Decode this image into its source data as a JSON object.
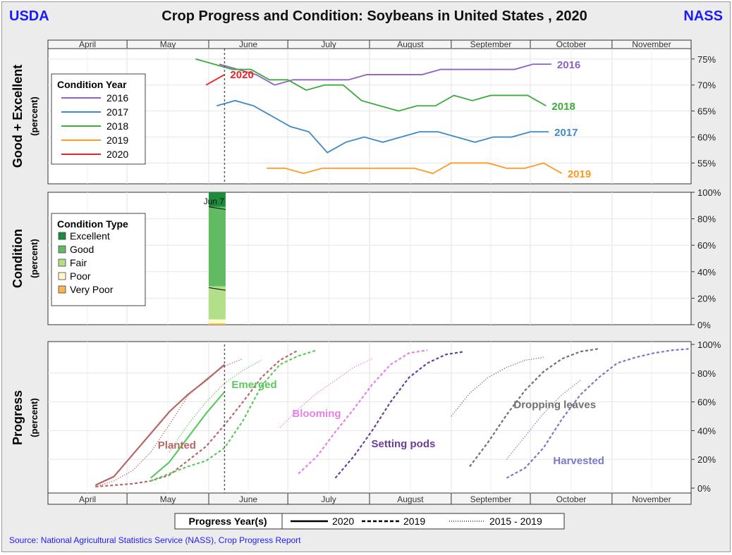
{
  "header": {
    "left": "USDA",
    "right": "NASS",
    "title": "Crop Progress and Condition: Soybeans in United States , 2020"
  },
  "months": [
    "April",
    "May",
    "June",
    "July",
    "August",
    "September",
    "October",
    "November"
  ],
  "panels": {
    "top": {
      "ylabel": "Good + Excellent",
      "ysub": "(percent)",
      "ticks": [
        "75%",
        "70%",
        "65%",
        "60%",
        "55%"
      ]
    },
    "mid": {
      "ylabel": "Condition",
      "ysub": "(percent)",
      "ticks": [
        "100%",
        "80%",
        "60%",
        "40%",
        "20%",
        "0%"
      ]
    },
    "bot": {
      "ylabel": "Progress",
      "ysub": "(percent)",
      "ticks": [
        "100%",
        "80%",
        "60%",
        "40%",
        "20%",
        "0%"
      ]
    }
  },
  "condition_year_legend": {
    "title": "Condition Year",
    "items": [
      {
        "label": "2016",
        "color": "#8e62c2"
      },
      {
        "label": "2017",
        "color": "#3f8ac6"
      },
      {
        "label": "2018",
        "color": "#3caa3c"
      },
      {
        "label": "2019",
        "color": "#ff9922"
      },
      {
        "label": "2020",
        "color": "#ee2222"
      }
    ]
  },
  "condition_type_legend": {
    "title": "Condition Type",
    "items": [
      {
        "label": "Excellent",
        "color": "#1e8a3c"
      },
      {
        "label": "Good",
        "color": "#62bb62"
      },
      {
        "label": "Fair",
        "color": "#b3df8a"
      },
      {
        "label": "Poor",
        "color": "#fffbcc"
      },
      {
        "label": "Very Poor",
        "color": "#f7b74a"
      }
    ]
  },
  "condition_date_label": "Jun 7",
  "progress_legend": {
    "title": "Progress Year(s)",
    "items": [
      "2020",
      "2019",
      "2015 - 2019"
    ]
  },
  "source": "Source: National Agricultural Statistics Service (NASS), Crop Progress Report",
  "chart_data": [
    {
      "type": "line",
      "title": "Crop Progress and Condition: Soybeans in United States , 2020",
      "ylabel": "Good + Excellent (percent)",
      "x_unit": "week ending date (month-day)",
      "ylim": [
        51,
        77
      ],
      "series": [
        {
          "name": "2016",
          "color": "#8e62c2",
          "x": [
            "06-05",
            "06-12",
            "06-19",
            "06-26",
            "07-03",
            "07-10",
            "07-17",
            "07-24",
            "07-31",
            "08-07",
            "08-14",
            "08-21",
            "08-28",
            "09-04",
            "09-11",
            "09-18",
            "09-25",
            "10-02",
            "10-09"
          ],
          "values": [
            74,
            73,
            72,
            70,
            71,
            71,
            71,
            71,
            72,
            72,
            72,
            72,
            73,
            73,
            73,
            73,
            73,
            74,
            74
          ]
        },
        {
          "name": "2017",
          "color": "#3f8ac6",
          "x": [
            "06-04",
            "06-11",
            "06-18",
            "06-25",
            "07-02",
            "07-09",
            "07-16",
            "07-23",
            "07-30",
            "08-06",
            "08-13",
            "08-20",
            "08-27",
            "09-03",
            "09-10",
            "09-17",
            "09-24",
            "10-01",
            "10-08"
          ],
          "values": [
            66,
            67,
            66,
            64,
            62,
            61,
            57,
            59,
            60,
            59,
            60,
            61,
            61,
            60,
            59,
            60,
            60,
            61,
            61
          ]
        },
        {
          "name": "2018",
          "color": "#3caa3c",
          "x": [
            "05-27",
            "06-03",
            "06-10",
            "06-17",
            "06-24",
            "07-01",
            "07-08",
            "07-15",
            "07-22",
            "07-29",
            "08-05",
            "08-12",
            "08-19",
            "08-26",
            "09-02",
            "09-09",
            "09-16",
            "09-23",
            "09-30",
            "10-07"
          ],
          "values": [
            75,
            74,
            73,
            73,
            71,
            71,
            69,
            70,
            70,
            67,
            66,
            65,
            66,
            66,
            68,
            67,
            68,
            68,
            68,
            66
          ]
        },
        {
          "name": "2019",
          "color": "#ff9922",
          "x": [
            "06-23",
            "06-30",
            "07-07",
            "07-14",
            "07-21",
            "07-28",
            "08-04",
            "08-11",
            "08-18",
            "08-25",
            "09-01",
            "09-08",
            "09-15",
            "09-22",
            "09-29",
            "10-06",
            "10-13"
          ],
          "values": [
            54,
            54,
            53,
            54,
            54,
            54,
            54,
            54,
            54,
            53,
            55,
            55,
            55,
            54,
            54,
            55,
            53
          ]
        },
        {
          "name": "2020",
          "color": "#ee2222",
          "x": [
            "05-31",
            "06-07"
          ],
          "values": [
            70,
            72
          ]
        }
      ]
    },
    {
      "type": "area",
      "ylabel": "Condition (percent)",
      "ylim": [
        0,
        100
      ],
      "date": "06-07",
      "categories": [
        "Very Poor",
        "Poor",
        "Fair",
        "Good",
        "Excellent"
      ],
      "values": [
        1,
        3,
        25,
        60,
        11
      ]
    },
    {
      "type": "line",
      "ylabel": "Progress (percent)",
      "ylim": [
        0,
        100
      ],
      "x_unit": "week ending date (month-day)",
      "stage_labels": [
        {
          "text": "Planted",
          "color": "#b86666"
        },
        {
          "text": "Emerged",
          "color": "#5cc95c"
        },
        {
          "text": "Blooming",
          "color": "#e67fe6"
        },
        {
          "text": "Setting pods",
          "color": "#6a3d9a"
        },
        {
          "text": "Dropping leaves",
          "color": "#707070"
        },
        {
          "text": "Harvested",
          "color": "#7b78c9"
        }
      ],
      "series": [
        {
          "name": "2020",
          "color": "#b86666",
          "style": "solid",
          "x": [
            "04-19",
            "04-26",
            "05-03",
            "05-10",
            "05-17",
            "05-24",
            "05-31",
            "06-07"
          ],
          "values": [
            2,
            8,
            23,
            38,
            53,
            65,
            75,
            86
          ]
        },
        {
          "name": "2020",
          "color": "#5cc95c",
          "style": "solid",
          "x": [
            "05-10",
            "05-17",
            "05-24",
            "05-31",
            "06-07"
          ],
          "values": [
            7,
            18,
            35,
            52,
            67
          ]
        },
        {
          "x": [
            "04-19",
            "04-26",
            "05-03",
            "05-10",
            "05-17",
            "05-24",
            "05-31",
            "06-07",
            "06-14",
            "06-21",
            "06-28",
            "07-05"
          ],
          "values": [
            1,
            2,
            3,
            5,
            9,
            19,
            29,
            44,
            60,
            77,
            89,
            96
          ],
          "color": "#b86666",
          "style": "dashed"
        },
        {
          "x": [
            "05-10",
            "05-17",
            "05-24",
            "05-31",
            "06-07",
            "06-14",
            "06-21",
            "06-28",
            "07-05",
            "07-12"
          ],
          "values": [
            5,
            10,
            15,
            19,
            28,
            47,
            71,
            86,
            92,
            96
          ],
          "color": "#5cc95c",
          "style": "dashed"
        },
        {
          "x": [
            "07-05",
            "07-12",
            "07-19",
            "07-26",
            "08-02",
            "08-09",
            "08-16",
            "08-23"
          ],
          "values": [
            10,
            22,
            39,
            55,
            72,
            86,
            94,
            96
          ],
          "color": "#e67fe6",
          "style": "dashed"
        },
        {
          "x": [
            "07-19",
            "07-26",
            "08-02",
            "08-09",
            "08-16",
            "08-23",
            "08-30",
            "09-06"
          ],
          "values": [
            7,
            22,
            40,
            60,
            77,
            87,
            93,
            95
          ],
          "color": "#6a3d9a",
          "style": "dashed"
        },
        {
          "x": [
            "09-08",
            "09-15",
            "09-22",
            "09-29",
            "10-06",
            "10-13",
            "10-20",
            "10-27"
          ],
          "values": [
            15,
            32,
            51,
            68,
            81,
            90,
            95,
            97
          ],
          "color": "#707070",
          "style": "dashed"
        },
        {
          "x": [
            "09-22",
            "09-29",
            "10-06",
            "10-13",
            "10-20",
            "10-27",
            "11-03",
            "11-10",
            "11-17",
            "11-24",
            "12-01"
          ],
          "values": [
            7,
            14,
            28,
            48,
            65,
            77,
            87,
            91,
            94,
            96,
            97
          ],
          "color": "#7b78c9",
          "style": "dashed"
        },
        {
          "x": [
            "04-19",
            "04-26",
            "05-03",
            "05-10",
            "05-17",
            "05-24",
            "05-31",
            "06-07",
            "06-14"
          ],
          "values": [
            1,
            5,
            12,
            25,
            44,
            64,
            76,
            85,
            90
          ],
          "color": "#b86666",
          "style": "dotted"
        },
        {
          "x": [
            "05-17",
            "05-24",
            "05-31",
            "06-07",
            "06-14",
            "06-21"
          ],
          "values": [
            25,
            44,
            60,
            73,
            82,
            89
          ],
          "color": "#5cc95c",
          "style": "dotted"
        },
        {
          "x": [
            "06-28",
            "07-05",
            "07-12",
            "07-19",
            "07-26",
            "08-02"
          ],
          "values": [
            42,
            55,
            66,
            75,
            84,
            90
          ],
          "color": "#e67fe6",
          "style": "dotted"
        },
        {
          "x": [
            "09-01",
            "09-08",
            "09-15",
            "09-22",
            "09-29",
            "10-06"
          ],
          "values": [
            50,
            66,
            77,
            84,
            89,
            91
          ],
          "color": "#707070",
          "style": "dotted"
        },
        {
          "x": [
            "09-22",
            "09-29",
            "10-06",
            "10-13",
            "10-20"
          ],
          "values": [
            20,
            36,
            52,
            65,
            75
          ],
          "color": "#7b78c9",
          "style": "dotted"
        }
      ]
    }
  ]
}
